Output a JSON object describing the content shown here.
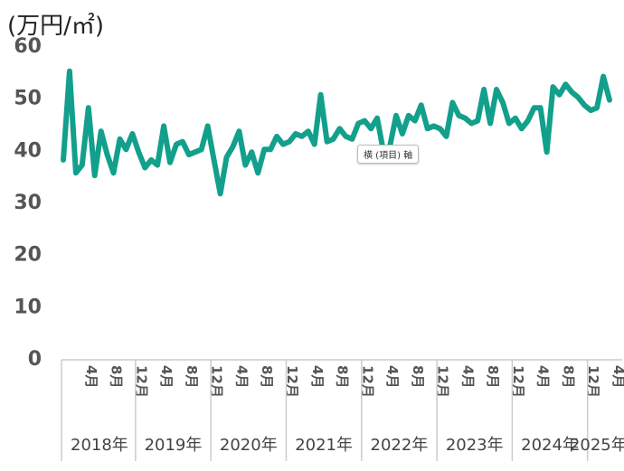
{
  "unit_label": "(万円/㎡)",
  "tooltip_label": "横 (項目) 軸",
  "chart_data": {
    "type": "line",
    "ylabel": "(万円/㎡)",
    "ylim": [
      0,
      60
    ],
    "yticks": [
      0,
      10,
      20,
      30,
      40,
      50,
      60
    ],
    "grid": false,
    "color": "#12a08c",
    "month_tick_labels": [
      "4月",
      "8月",
      "12月",
      "4月",
      "8月",
      "12月",
      "4月",
      "8月",
      "12月",
      "4月",
      "8月",
      "12月",
      "4月",
      "8月",
      "12月",
      "4月",
      "8月",
      "12月",
      "4月",
      "8月",
      "12月",
      "4月"
    ],
    "year_labels": [
      "2018年",
      "2019年",
      "2020年",
      "2021年",
      "2022年",
      "2023年",
      "2024年",
      "2025年"
    ],
    "series": [
      {
        "values": [
          38.0,
          55.0,
          35.5,
          37.0,
          48.0,
          35.0,
          43.5,
          39.0,
          35.5,
          42.0,
          40.0,
          43.0,
          39.5,
          36.5,
          38.0,
          37.0,
          44.5,
          37.5,
          41.0,
          41.5,
          39.0,
          39.5,
          40.0,
          44.5,
          38.0,
          31.5,
          38.5,
          40.5,
          43.5,
          37.0,
          39.5,
          35.5,
          40.0,
          40.0,
          42.5,
          41.0,
          41.5,
          43.0,
          42.5,
          43.5,
          41.0,
          50.5,
          41.5,
          42.0,
          44.0,
          42.5,
          42.0,
          45.0,
          45.5,
          44.0,
          46.0,
          39.5,
          40.5,
          46.5,
          43.0,
          46.5,
          45.5,
          48.5,
          44.0,
          44.5,
          44.0,
          42.5,
          49.0,
          46.5,
          46.0,
          45.0,
          45.5,
          51.5,
          45.0,
          51.5,
          49.0,
          45.0,
          46.0,
          44.0,
          45.5,
          48.0,
          48.0,
          39.5,
          52.0,
          50.5,
          52.5,
          51.0,
          50.0,
          48.5,
          47.5,
          48.0,
          54.0,
          49.5
        ]
      }
    ]
  }
}
